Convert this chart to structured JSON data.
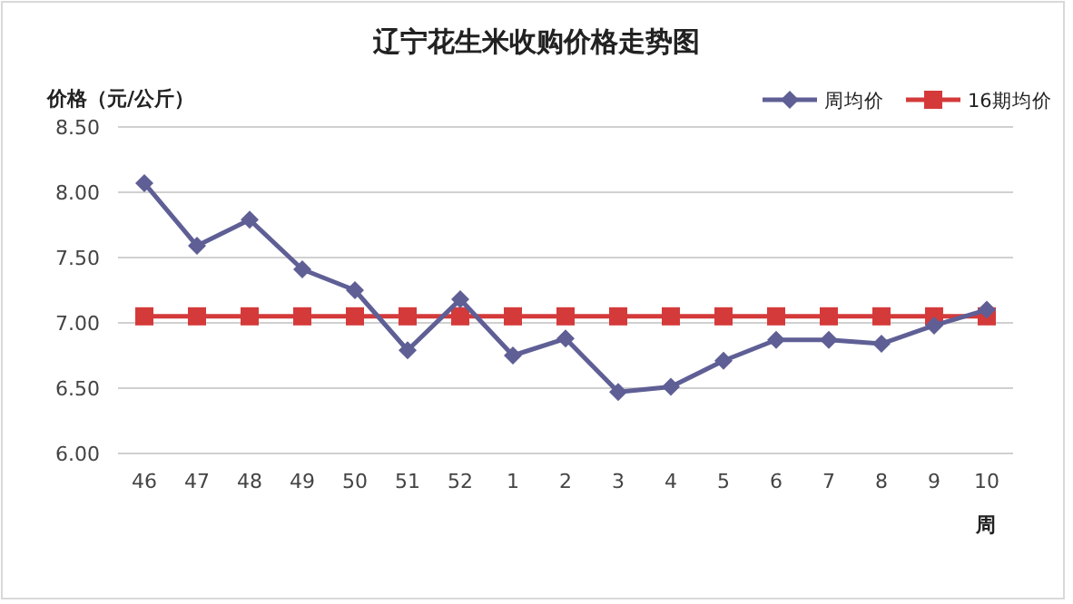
{
  "chart_data": {
    "type": "line",
    "title": "辽宁花生米收购价格走势图",
    "ylabel": "价格（元/公斤）",
    "xlabel": "周",
    "categories": [
      "46",
      "47",
      "48",
      "49",
      "50",
      "51",
      "52",
      "1",
      "2",
      "3",
      "4",
      "5",
      "6",
      "7",
      "8",
      "9",
      "10"
    ],
    "series": [
      {
        "name": "周均价",
        "color": "#5f5f96",
        "marker": "diamond",
        "values": [
          8.07,
          7.59,
          7.79,
          7.41,
          7.25,
          6.79,
          7.18,
          6.75,
          6.88,
          6.47,
          6.51,
          6.71,
          6.87,
          6.87,
          6.84,
          6.98,
          7.1
        ]
      },
      {
        "name": "16期均价",
        "color": "#d43a3a",
        "marker": "square",
        "values": [
          7.05,
          7.05,
          7.05,
          7.05,
          7.05,
          7.05,
          7.05,
          7.05,
          7.05,
          7.05,
          7.05,
          7.05,
          7.05,
          7.05,
          7.05,
          7.05,
          7.05
        ]
      }
    ],
    "ylim": [
      6,
      8.5
    ],
    "yticks": [
      {
        "value": 6,
        "label": "6.00"
      },
      {
        "value": 6.5,
        "label": "6.50"
      },
      {
        "value": 7,
        "label": "7.00"
      },
      {
        "value": 7.5,
        "label": "7.50"
      },
      {
        "value": 8,
        "label": "8.00"
      },
      {
        "value": 8.5,
        "label": "8.50"
      }
    ],
    "grid": "y",
    "legend": "top right",
    "line_style": "solid"
  }
}
